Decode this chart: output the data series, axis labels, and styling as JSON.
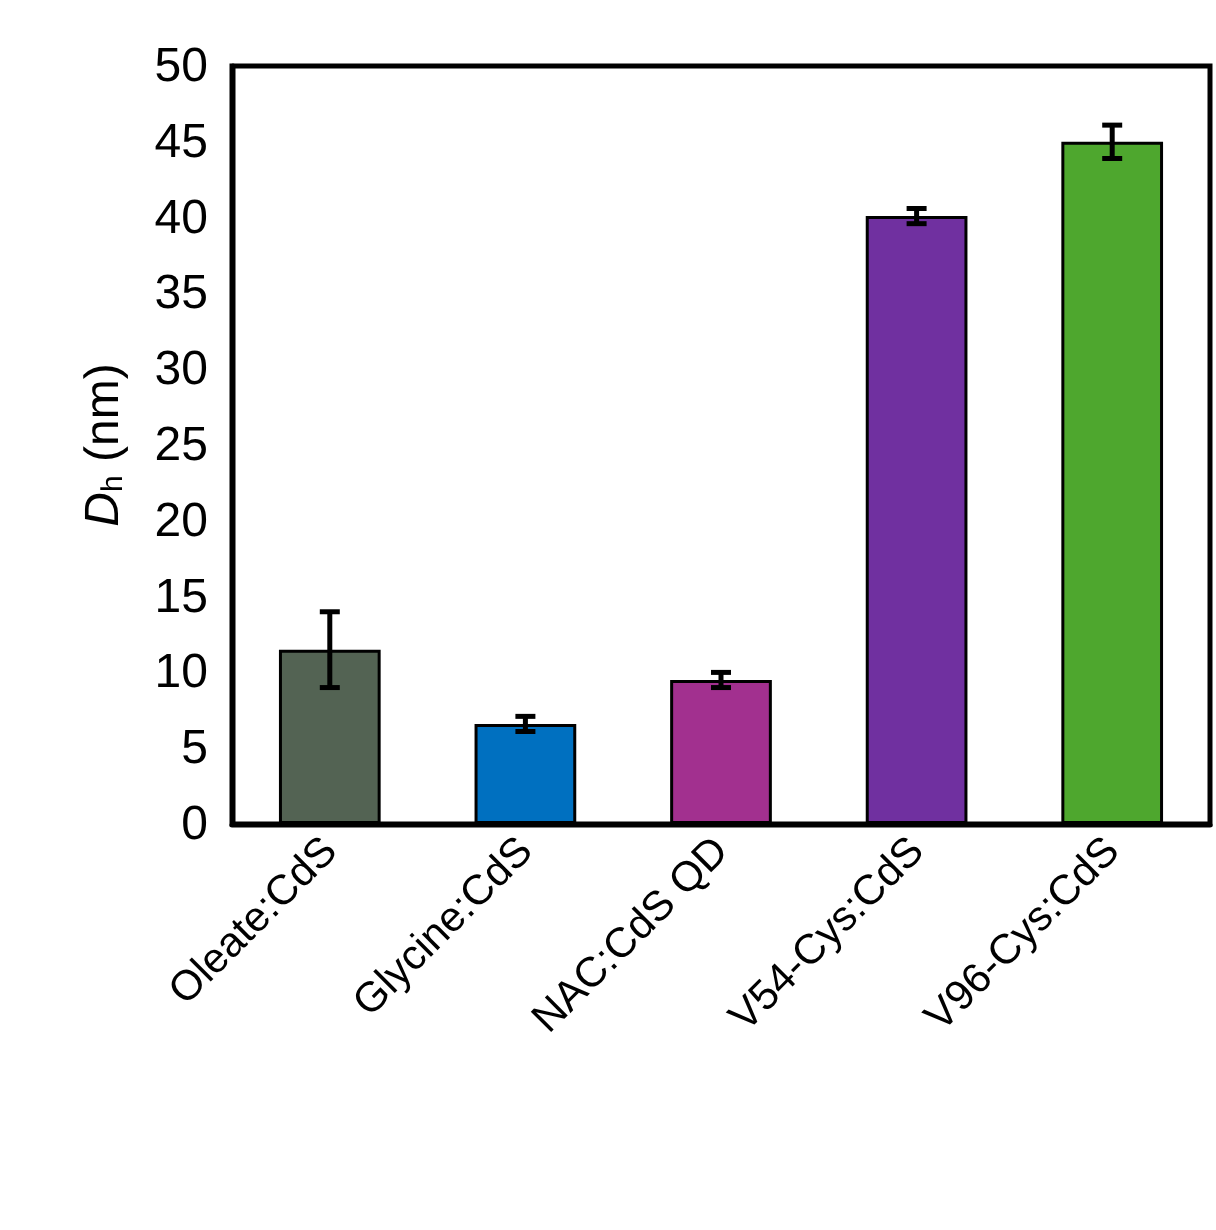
{
  "chart_data": {
    "type": "bar",
    "ylabel": "D$_{h}$ (nm)",
    "categories": [
      "Oleate:CdS",
      "Glycine:CdS",
      "NAC:CdS QD",
      "V54-Cys:CdS",
      "V96-Cys:CdS"
    ],
    "values": [
      11.5,
      6.6,
      9.5,
      40.1,
      45.0
    ],
    "colors": [
      "#536353",
      "#0070c0",
      "#a2308f",
      "#7030a0",
      "#4ea72e"
    ],
    "errors": [
      2.5,
      0.5,
      0.5,
      0.5,
      1.1
    ],
    "ylim": [
      0,
      50
    ],
    "yticks": [
      0,
      5,
      10,
      15,
      20,
      25,
      30,
      35,
      40,
      45,
      50
    ],
    "grid": false
  }
}
